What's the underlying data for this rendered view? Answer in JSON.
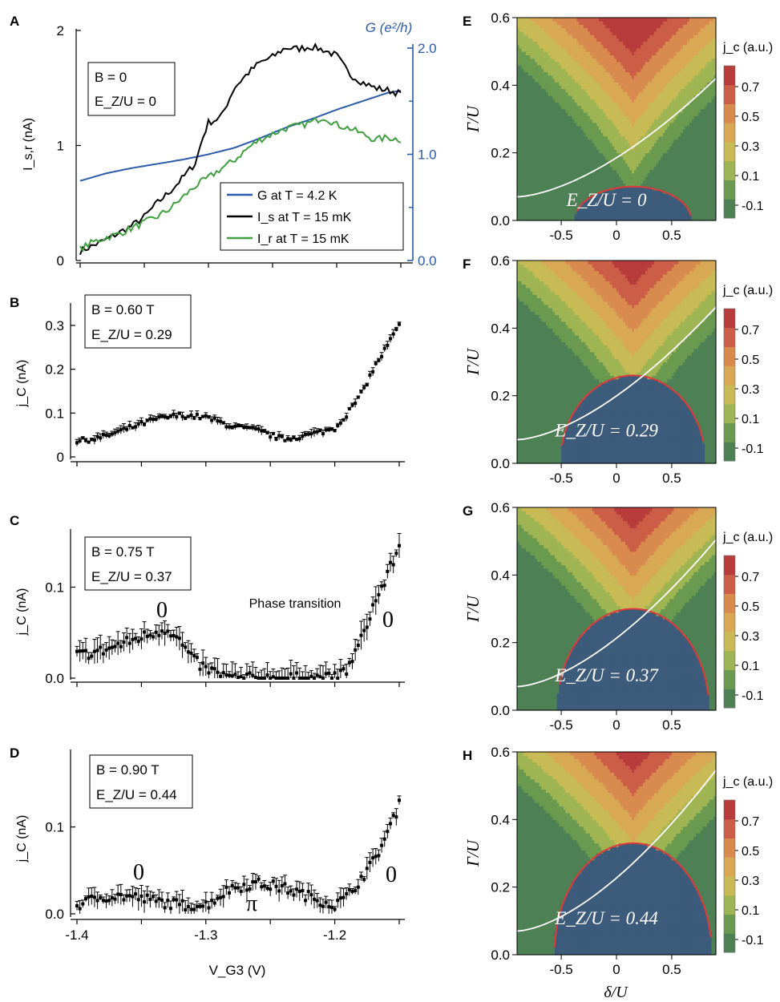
{
  "panels_left": [
    {
      "letter": "A",
      "info": [
        "B = 0",
        "E_Z/U = 0"
      ],
      "ylabel": "I_s,r (nA)",
      "y2label": "G (e²/h)",
      "yticks": [
        "0",
        "1",
        "2"
      ],
      "y2ticks": [
        "0.0",
        "1.0",
        "2.0"
      ],
      "legend": [
        "G at T = 4.2 K",
        "I_s at T = 15 mK",
        "I_r at T = 15 mK"
      ]
    },
    {
      "letter": "B",
      "info": [
        "B = 0.60 T",
        "E_Z/U = 0.29"
      ],
      "ylabel": "j_C (nA)",
      "yticks": [
        "0",
        "0.1",
        "0.2",
        "0.3"
      ]
    },
    {
      "letter": "C",
      "info": [
        "B = 0.75 T",
        "E_Z/U = 0.37"
      ],
      "ylabel": "j_C (nA)",
      "yticks": [
        "0.0",
        "0.1"
      ],
      "annotations": [
        "0",
        "Phase transition",
        "0"
      ]
    },
    {
      "letter": "D",
      "info": [
        "B = 0.90 T",
        "E_Z/U = 0.44"
      ],
      "ylabel": "j_C (nA)",
      "yticks": [
        "0.0",
        "0.1"
      ],
      "annotations": [
        "0",
        "π",
        "0"
      ],
      "xlabel": "V_G3 (V)",
      "xticks": [
        "-1.4",
        "-1.3",
        "-1.2"
      ]
    }
  ],
  "panels_right": [
    {
      "letter": "E",
      "label": "E_Z/U = 0"
    },
    {
      "letter": "F",
      "label": "E_Z/U = 0.29"
    },
    {
      "letter": "G",
      "label": "E_Z/U = 0.37"
    },
    {
      "letter": "H",
      "label": "E_Z/U = 0.44"
    }
  ],
  "map_axes": {
    "ylabel": "Γ/U",
    "xlabel": "δ/U",
    "yticks": [
      "0.0",
      "0.2",
      "0.4",
      "0.6"
    ],
    "xticks": [
      "-0.5",
      "0",
      "0.5"
    ]
  },
  "colorbar": {
    "title": "j_c (a.u.)",
    "ticks": [
      "0.7",
      "0.5",
      "0.3",
      "0.1",
      "-0.1"
    ],
    "colors": [
      "#3d5b7a",
      "#4e8055",
      "#6a9a4f",
      "#9fb452",
      "#c8bb56",
      "#d8a854",
      "#d98a4f",
      "#cc5d46",
      "#b83c3c"
    ]
  },
  "chart_data": [
    {
      "type": "line",
      "title": "A",
      "xlabel": "",
      "ylabel": "I_s,r (nA)",
      "y2label": "G (e²/h)",
      "xlim": [
        -1.4,
        -1.15
      ],
      "ylim": [
        0,
        2
      ],
      "y2lim": [
        0,
        2
      ],
      "series": [
        {
          "name": "G at T = 4.2 K",
          "axis": "right",
          "color": "#2a5caa",
          "x": [
            -1.4,
            -1.38,
            -1.36,
            -1.34,
            -1.32,
            -1.3,
            -1.28,
            -1.26,
            -1.24,
            -1.22,
            -1.2,
            -1.18,
            -1.16,
            -1.15
          ],
          "y": [
            0.75,
            0.82,
            0.87,
            0.91,
            0.95,
            1.0,
            1.06,
            1.15,
            1.25,
            1.33,
            1.42,
            1.5,
            1.58,
            1.6
          ]
        },
        {
          "name": "I_s at T = 15 mK",
          "axis": "left",
          "color": "#000000",
          "x": [
            -1.4,
            -1.39,
            -1.38,
            -1.37,
            -1.36,
            -1.35,
            -1.34,
            -1.33,
            -1.32,
            -1.31,
            -1.305,
            -1.3,
            -1.295,
            -1.29,
            -1.28,
            -1.27,
            -1.26,
            -1.25,
            -1.24,
            -1.23,
            -1.22,
            -1.21,
            -1.2,
            -1.19,
            -1.18,
            -1.17,
            -1.16,
            -1.15
          ],
          "y": [
            0.08,
            0.13,
            0.18,
            0.24,
            0.3,
            0.38,
            0.5,
            0.6,
            0.72,
            0.85,
            1.05,
            1.2,
            1.22,
            1.25,
            1.5,
            1.62,
            1.72,
            1.77,
            1.85,
            1.84,
            1.86,
            1.83,
            1.78,
            1.62,
            1.55,
            1.5,
            1.48,
            1.45
          ]
        },
        {
          "name": "I_r at T = 15 mK",
          "axis": "left",
          "color": "#3fa03f",
          "x": [
            -1.4,
            -1.39,
            -1.38,
            -1.37,
            -1.36,
            -1.35,
            -1.34,
            -1.33,
            -1.32,
            -1.31,
            -1.3,
            -1.29,
            -1.28,
            -1.27,
            -1.26,
            -1.25,
            -1.24,
            -1.23,
            -1.22,
            -1.21,
            -1.2,
            -1.19,
            -1.18,
            -1.17,
            -1.16,
            -1.15
          ],
          "y": [
            0.1,
            0.16,
            0.2,
            0.23,
            0.28,
            0.33,
            0.38,
            0.45,
            0.55,
            0.65,
            0.72,
            0.8,
            0.87,
            0.97,
            1.05,
            1.1,
            1.15,
            1.17,
            1.2,
            1.25,
            1.18,
            1.15,
            1.1,
            1.05,
            1.07,
            1.05
          ]
        }
      ]
    },
    {
      "type": "scatter",
      "title": "B",
      "xlabel": "",
      "ylabel": "j_C (nA)",
      "xlim": [
        -1.4,
        -1.15
      ],
      "ylim": [
        0,
        0.33
      ],
      "series": [
        {
          "name": "",
          "x": [
            -1.4,
            -1.38,
            -1.36,
            -1.34,
            -1.32,
            -1.3,
            -1.28,
            -1.26,
            -1.24,
            -1.22,
            -1.2,
            -1.19,
            -1.18,
            -1.17,
            -1.16,
            -1.15
          ],
          "y": [
            0.035,
            0.045,
            0.065,
            0.085,
            0.095,
            0.09,
            0.07,
            0.06,
            0.04,
            0.05,
            0.065,
            0.1,
            0.14,
            0.2,
            0.25,
            0.3
          ]
        }
      ]
    },
    {
      "type": "scatter",
      "title": "C",
      "xlabel": "",
      "ylabel": "j_C (nA)",
      "xlim": [
        -1.4,
        -1.15
      ],
      "ylim": [
        0,
        0.155
      ],
      "series": [
        {
          "name": "",
          "x": [
            -1.4,
            -1.38,
            -1.36,
            -1.34,
            -1.33,
            -1.32,
            -1.31,
            -1.3,
            -1.29,
            -1.28,
            -1.26,
            -1.24,
            -1.22,
            -1.2,
            -1.19,
            -1.18,
            -1.17,
            -1.16,
            -1.15
          ],
          "y": [
            0.025,
            0.03,
            0.04,
            0.05,
            0.055,
            0.04,
            0.02,
            0.01,
            0.005,
            0.0,
            0.0,
            0.0,
            0.0,
            0.0,
            0.01,
            0.04,
            0.08,
            0.11,
            0.145
          ]
        }
      ]
    },
    {
      "type": "scatter",
      "title": "D",
      "xlabel": "V_G3 (V)",
      "ylabel": "j_C (nA)",
      "xlim": [
        -1.4,
        -1.15
      ],
      "ylim": [
        0,
        0.18
      ],
      "series": [
        {
          "name": "",
          "x": [
            -1.4,
            -1.38,
            -1.36,
            -1.34,
            -1.32,
            -1.3,
            -1.28,
            -1.26,
            -1.24,
            -1.22,
            -1.2,
            -1.19,
            -1.18,
            -1.17,
            -1.16,
            -1.15
          ],
          "y": [
            0.01,
            0.02,
            0.02,
            0.015,
            0.01,
            0.01,
            0.03,
            0.035,
            0.03,
            0.02,
            0.01,
            0.02,
            0.04,
            0.06,
            0.09,
            0.125
          ]
        }
      ]
    },
    {
      "type": "heatmap",
      "title": "E",
      "xlabel": "",
      "ylabel": "Γ/U",
      "xlim": [
        -0.9,
        0.9
      ],
      "ylim": [
        0,
        0.6
      ],
      "levels": [
        -0.1,
        0.1,
        0.3,
        0.5,
        0.7
      ],
      "pi_dome_peak": 0.1
    },
    {
      "type": "heatmap",
      "title": "F",
      "xlabel": "",
      "ylabel": "Γ/U",
      "xlim": [
        -0.9,
        0.9
      ],
      "ylim": [
        0,
        0.6
      ],
      "levels": [
        -0.1,
        0.1,
        0.3,
        0.5,
        0.7
      ],
      "pi_dome_peak": 0.26
    },
    {
      "type": "heatmap",
      "title": "G",
      "xlabel": "",
      "ylabel": "Γ/U",
      "xlim": [
        -0.9,
        0.9
      ],
      "ylim": [
        0,
        0.6
      ],
      "levels": [
        -0.1,
        0.1,
        0.3,
        0.5,
        0.7
      ],
      "pi_dome_peak": 0.3
    },
    {
      "type": "heatmap",
      "title": "H",
      "xlabel": "δ/U",
      "ylabel": "Γ/U",
      "xlim": [
        -0.9,
        0.9
      ],
      "ylim": [
        0,
        0.6
      ],
      "levels": [
        -0.1,
        0.1,
        0.3,
        0.5,
        0.7
      ],
      "pi_dome_peak": 0.33
    }
  ]
}
